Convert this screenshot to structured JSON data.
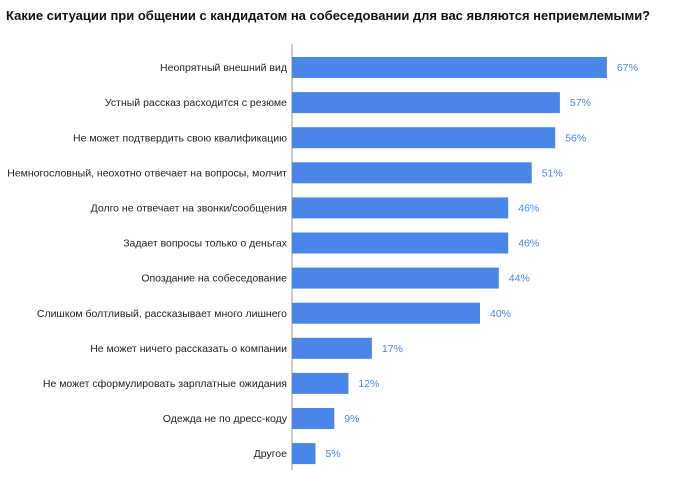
{
  "chart_data": {
    "type": "bar",
    "orientation": "horizontal",
    "title": "Какие ситуации при общении с кандидатом на собеседовании для вас являются неприемлемыми?",
    "categories": [
      "Неопрятный внешний вид",
      "Устный рассказ расходится с резюме",
      "Не может подтвердить свою квалификацию",
      "Немногословный, неохотно отвечает на вопросы, молчит",
      "Долго не отвечает на звонки/сообщения",
      "Задает вопросы только о деньгах",
      "Опоздание на собеседование",
      "Слишком болтливый, рассказывает много лишнего",
      "Не может ничего рассказать о компании",
      "Не может сформулировать зарплатные ожидания",
      "Одежда не по дресс-коду",
      "Другое"
    ],
    "values": [
      67,
      57,
      56,
      51,
      46,
      46,
      44,
      40,
      17,
      12,
      9,
      5
    ],
    "value_labels": [
      "67%",
      "57%",
      "56%",
      "51%",
      "46%",
      "46%",
      "44%",
      "40%",
      "17%",
      "12%",
      "9%",
      "5%"
    ],
    "xlim": [
      0,
      70
    ],
    "xlabel": "",
    "ylabel": "",
    "grid": false,
    "colors": {
      "bar": "#4a86e8",
      "value_label": "#4a86e8",
      "axis": "#999999"
    }
  }
}
